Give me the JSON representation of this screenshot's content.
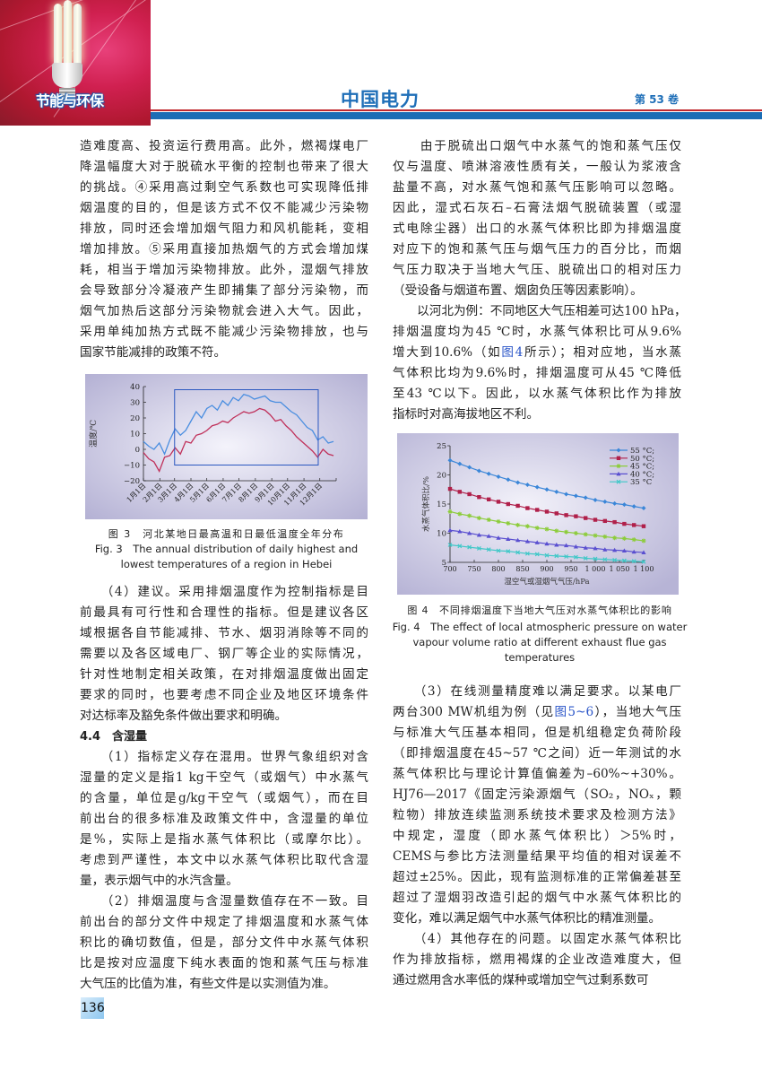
{
  "header": {
    "section_tag": "节能与环保",
    "journal_title": "中国电力",
    "volume": "第 53 卷",
    "colors": {
      "brand_blue": "#1f6fb8",
      "rule_red": "#c0282e",
      "rule_blue": "#1b6db5"
    }
  },
  "left_top": [
    {
      "type": "p",
      "lines": [
        "造难度高、投资运行费用高。此外，燃褐煤电厂",
        "降温幅度大对于脱硫水平衡的控制也带来了很大",
        "的挑战。④采用高过剩空气系数也可实现降低排",
        "烟温度的目的，但是该方式不仅不能减少污染物",
        "排放，同时还会增加烟气阻力和风机能耗，变相",
        "增加排放。⑤采用直接加热烟气的方式会增加煤",
        "耗，相当于增加污染物排放。此外，湿烟气排放",
        "会导致部分冷凝液产生即捕集了部分污染物，而",
        "烟气加热后这部分污染物就会进入大气。因此，",
        "采用单纯加热方式既不能减少污染物排放，也与",
        "国家节能减排的政策不符。"
      ]
    }
  ],
  "right_top": [
    {
      "type": "p",
      "lines": [
        "　　由于脱硫出口烟气中水蒸气的饱和蒸气压仅",
        "仅与温度、喷淋溶液性质有关，一般认为浆液含",
        "盐量不高，对水蒸气饱和蒸气压影响可以忽略。",
        "因此，湿式石灰石–石膏法烟气脱硫装置（或湿",
        "式电除尘器）出口的水蒸气体积比即为排烟温度",
        "对应下的饱和蒸气压与烟气压力的百分比，而烟",
        "气压力取决于当地大气压、脱硫出口的相对压力",
        "（受设备与烟道布置、烟囱负压等因素影响）。"
      ]
    },
    {
      "type": "p",
      "lines": [
        "　　以河北为例：不同地区大气压相差可达100 hPa，",
        "排烟温度均为45 ℃时，水蒸气体积比可从9.6%",
        [
          {
            "text": "增大到10.6%（如"
          },
          {
            "text": "图4",
            "link": true
          },
          {
            "text": "所示）；相对应地，当水蒸"
          }
        ],
        "气体积比均为9.6%时，排烟温度可从45 ℃降低",
        "至43 ℃以下。因此，以水蒸气体积比作为排放",
        "指标时对高海拔地区不利。"
      ]
    }
  ],
  "left_bottom": [
    {
      "type": "p",
      "lines": [
        "　　（4）建议。采用排烟温度作为控制指标是目",
        "前最具有可行性和合理性的指标。但是建议各区",
        "域根据各自节能减排、节水、烟羽消除等不同的",
        "需要以及各区域电厂、钢厂等企业的实际情况，",
        "针对性地制定相关政策，在对排烟温度做出固定",
        "要求的同时，也要考虑不同企业及地区环境条件",
        "对达标率及豁免条件做出要求和明确。"
      ]
    },
    {
      "type": "h",
      "text": "4.4　含湿量"
    },
    {
      "type": "p",
      "lines": [
        "　　（1）指标定义存在混用。世界气象组织对含",
        "湿量的定义是指1 kg干空气（或烟气）中水蒸气",
        "的含量，单位是g/kg干空气（或烟气），而在目",
        "前出台的很多标准及政策文件中，含湿量的单位",
        "是%，实际上是指水蒸气体积比（或摩尔比）。",
        "考虑到严谨性，本文中以水蒸气体积比取代含湿",
        "量，表示烟气中的水汽含量。"
      ]
    },
    {
      "type": "p",
      "lines": [
        "　　（2）排烟温度与含湿量数值存在不一致。目",
        "前出台的部分文件中规定了排烟温度和水蒸气体",
        "积比的确切数值，但是，部分文件中水蒸气体积",
        "比是按对应温度下纯水表面的饱和蒸气压与标准",
        "大气压的比值为准，有些文件是以实测值为准。"
      ]
    }
  ],
  "right_bottom": [
    {
      "type": "p",
      "lines": [
        "　　（3）在线测量精度难以满足要求。以某电厂",
        [
          {
            "text": "两台300 MW机组为例（见"
          },
          {
            "text": "图5~6",
            "link": true
          },
          {
            "text": "），当地大气压"
          }
        ],
        "与标准大气压基本相同，但是机组稳定负荷阶段",
        "（即排烟温度在45~57 ℃之间）近一年测试的水",
        "蒸气体积比与理论计算值偏差为–60%~+30%。",
        "HJ76—2017《固定污染源烟气（SO₂，NOₓ，颗",
        "粒物）排放连续监测系统技术要求及检测方法》",
        "中规定，湿度（即水蒸气体积比）＞5%时，",
        "CEMS与参比方法测量结果平均值的相对误差不",
        "超过±25%。因此，现有监测标准的正常偏差甚至",
        "超过了湿烟羽改造引起的烟气中水蒸气体积比的",
        "变化，难以满足烟气中水蒸气体积比的精准测量。"
      ]
    },
    {
      "type": "p",
      "lines": [
        "　　（4）其他存在的问题。以固定水蒸气体积比",
        "作为排放指标，燃用褐煤的企业改造难度大，但",
        "通过燃用含水率低的煤种或增加空气过剩系数可"
      ]
    }
  ],
  "fig3_caption": {
    "zh": "图 3　河北某地日最高温和日最低温度全年分布",
    "en_1": "Fig. 3　The annual distribution of daily highest and",
    "en_2": "lowest temperatures of a region in Hebei"
  },
  "fig4_caption": {
    "zh": "图 4　不同排烟温度下当地大气压对水蒸气体积比的影响",
    "en_1": "Fig. 4　The effect of local atmospheric pressure on water",
    "en_2": "vapour volume ratio at different exhaust flue gas",
    "en_3": "temperatures"
  },
  "page_number": "136",
  "chart_data": [
    {
      "type": "line",
      "title": "",
      "xlabel": "",
      "ylabel": "温度/℃",
      "ylim": [
        -20,
        40
      ],
      "yticks": [
        "40",
        "30",
        "20",
        "10",
        "0",
        "−10",
        "−20"
      ],
      "ytick_values": [
        40,
        30,
        20,
        10,
        0,
        -10,
        -20
      ],
      "xtick_labels": [
        "1月1日",
        "2月1日",
        "3月1日",
        "4月1日",
        "5月1日",
        "6月1日",
        "7月1日",
        "8月1日",
        "9月1日",
        "10月1日",
        "11月1日",
        "12月1日"
      ],
      "xtick_dates": [
        "01-01",
        "02-01",
        "03-01",
        "04-01",
        "05-01",
        "06-01",
        "07-01",
        "08-01",
        "09-01",
        "10-01",
        "11-01",
        "12-01"
      ],
      "grid": false,
      "x": [
        "01-01",
        "01-11",
        "01-21",
        "01-31",
        "02-10",
        "02-20",
        "03-02",
        "03-12",
        "03-22",
        "04-01",
        "04-11",
        "04-21",
        "05-01",
        "05-11",
        "05-21",
        "05-31",
        "06-10",
        "06-20",
        "06-30",
        "07-10",
        "07-20",
        "07-30",
        "08-09",
        "08-19",
        "08-29",
        "09-08",
        "09-18",
        "09-28",
        "10-08",
        "10-18",
        "10-28",
        "11-07",
        "11-17",
        "11-27",
        "12-07",
        "12-17",
        "12-27"
      ],
      "series": [
        {
          "color": "#4a8ee0",
          "values": [
            5,
            2,
            0,
            4,
            -3,
            6,
            13,
            9,
            12,
            18,
            24,
            20,
            26,
            28,
            25,
            31,
            28,
            33,
            31,
            35,
            34,
            32,
            33,
            34,
            31,
            30,
            30,
            27,
            24,
            22,
            18,
            14,
            12,
            6,
            8,
            4,
            5
          ]
        },
        {
          "color": "#c0305a",
          "values": [
            -2,
            -6,
            -8,
            -14,
            -5,
            -4,
            1,
            -3,
            5,
            4,
            9,
            10,
            12,
            15,
            16,
            18,
            17,
            20,
            22,
            24,
            23,
            24,
            26,
            25,
            22,
            18,
            19,
            15,
            12,
            8,
            5,
            2,
            -1,
            -5,
            0,
            -3,
            -4
          ]
        }
      ],
      "highlight_box": {
        "x_from": "03-01",
        "x_to": "11-28",
        "y_from": -10,
        "y_to": 38,
        "color": "#2b58c0"
      }
    },
    {
      "type": "line",
      "title": "",
      "xlabel": "湿空气或湿烟气气压/hPa",
      "ylabel": "水蒸气体积比/%",
      "xlim": [
        700,
        1100
      ],
      "ylim": [
        5,
        25
      ],
      "xticks": [
        "700",
        "750",
        "800",
        "850",
        "900",
        "950",
        "1 000",
        "1 050",
        "1 100"
      ],
      "xtick_values": [
        700,
        750,
        800,
        850,
        900,
        950,
        1000,
        1050,
        1100
      ],
      "yticks": [
        "25",
        "20",
        "15",
        "10",
        "5"
      ],
      "ytick_values": [
        25,
        20,
        15,
        10,
        5
      ],
      "grid": false,
      "legend": "top-right",
      "x": [
        700,
        720,
        740,
        760,
        780,
        800,
        820,
        840,
        860,
        880,
        900,
        920,
        940,
        960,
        980,
        1000,
        1020,
        1040,
        1060,
        1080,
        1100
      ],
      "series": [
        {
          "name": "55 °C;",
          "color": "#3a86d8",
          "marker": "diamond",
          "values": [
            22.5,
            21.9,
            21.3,
            20.7,
            20.2,
            19.7,
            19.2,
            18.7,
            18.3,
            17.9,
            17.5,
            17.1,
            16.7,
            16.4,
            16.1,
            15.7,
            15.4,
            15.1,
            14.9,
            14.6,
            14.3
          ]
        },
        {
          "name": "50 °C;",
          "color": "#b0204a",
          "marker": "square",
          "values": [
            17.6,
            17.1,
            16.7,
            16.2,
            15.8,
            15.4,
            15.0,
            14.7,
            14.3,
            14.0,
            13.7,
            13.4,
            13.1,
            12.9,
            12.6,
            12.3,
            12.1,
            11.9,
            11.6,
            11.4,
            11.2
          ]
        },
        {
          "name": "45 °C;",
          "color": "#8ccc3a",
          "marker": "star",
          "values": [
            13.7,
            13.3,
            13.0,
            12.6,
            12.3,
            12.0,
            11.7,
            11.4,
            11.2,
            10.9,
            10.7,
            10.4,
            10.2,
            10.0,
            9.8,
            9.6,
            9.4,
            9.2,
            9.1,
            8.9,
            8.7
          ]
        },
        {
          "name": "40 °C;",
          "color": "#5a4fd0",
          "marker": "triangle",
          "values": [
            10.5,
            10.3,
            10.0,
            9.7,
            9.5,
            9.2,
            9.0,
            8.8,
            8.6,
            8.4,
            8.2,
            8.0,
            7.9,
            7.7,
            7.5,
            7.4,
            7.2,
            7.1,
            7.0,
            6.8,
            6.7
          ]
        },
        {
          "name": "35 °C",
          "color": "#40c8c8",
          "marker": "x",
          "values": [
            8.0,
            7.8,
            7.6,
            7.4,
            7.2,
            7.0,
            6.9,
            6.7,
            6.5,
            6.4,
            6.2,
            6.1,
            6.0,
            5.9,
            5.7,
            5.6,
            5.5,
            5.4,
            5.3,
            5.2,
            5.1
          ]
        }
      ]
    }
  ]
}
